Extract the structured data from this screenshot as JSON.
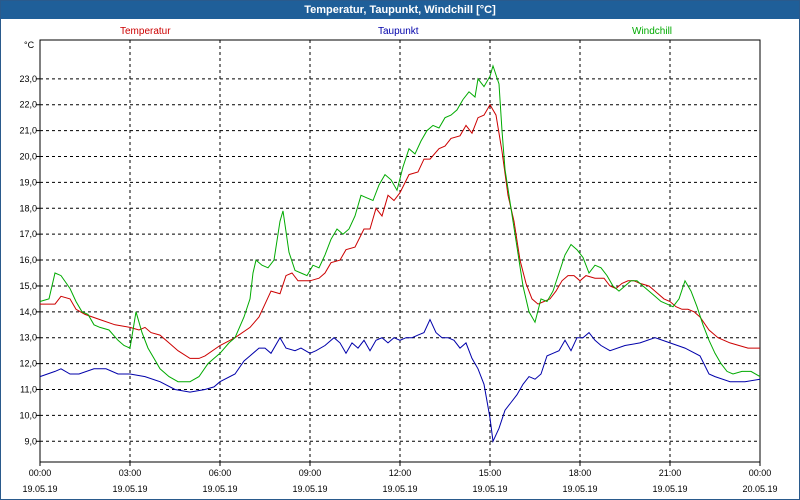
{
  "window": {
    "title": "Temperatur, Taupunkt, Windchill [°C]"
  },
  "chart_data": {
    "type": "line",
    "title": "Temperatur, Taupunkt, Windchill [°C]",
    "ylabel": "°C",
    "xlabel": "",
    "ylim": [
      8.2,
      24.5
    ],
    "xlim": [
      0,
      24
    ],
    "grid": true,
    "yticks": [
      9,
      10,
      11,
      12,
      13,
      14,
      15,
      16,
      17,
      18,
      19,
      20,
      21,
      22,
      23
    ],
    "ytick_labels": [
      "9,0",
      "10,0",
      "11,0",
      "12,0",
      "13,0",
      "14,0",
      "15,0",
      "16,0",
      "17,0",
      "18,0",
      "19,0",
      "20,0",
      "21,0",
      "22,0",
      "23,0"
    ],
    "xticks": [
      0,
      3,
      6,
      9,
      12,
      15,
      18,
      21,
      24
    ],
    "xtick_time_labels": [
      "00:00",
      "03:00",
      "06:00",
      "09:00",
      "12:00",
      "15:00",
      "18:00",
      "21:00",
      "00:00"
    ],
    "xtick_date_labels": [
      "19.05.19",
      "19.05.19",
      "19.05.19",
      "19.05.19",
      "19.05.19",
      "19.05.19",
      "19.05.19",
      "19.05.19",
      "20.05.19"
    ],
    "legend_position": "top",
    "series": [
      {
        "name": "Temperatur",
        "color": "#cc0000",
        "points": [
          [
            0,
            14.3
          ],
          [
            0.3,
            14.3
          ],
          [
            0.5,
            14.3
          ],
          [
            0.7,
            14.6
          ],
          [
            1,
            14.5
          ],
          [
            1.2,
            14.1
          ],
          [
            1.5,
            13.9
          ],
          [
            2,
            13.7
          ],
          [
            2.5,
            13.5
          ],
          [
            3,
            13.4
          ],
          [
            3.3,
            13.3
          ],
          [
            3.5,
            13.4
          ],
          [
            3.7,
            13.2
          ],
          [
            4,
            13.1
          ],
          [
            4.3,
            12.8
          ],
          [
            4.6,
            12.5
          ],
          [
            5,
            12.2
          ],
          [
            5.3,
            12.2
          ],
          [
            5.5,
            12.3
          ],
          [
            6,
            12.7
          ],
          [
            6.5,
            13.0
          ],
          [
            7,
            13.4
          ],
          [
            7.3,
            13.8
          ],
          [
            7.5,
            14.3
          ],
          [
            7.7,
            14.8
          ],
          [
            8,
            14.7
          ],
          [
            8.2,
            15.4
          ],
          [
            8.4,
            15.5
          ],
          [
            8.6,
            15.2
          ],
          [
            9,
            15.2
          ],
          [
            9.3,
            15.3
          ],
          [
            9.5,
            15.5
          ],
          [
            9.7,
            15.9
          ],
          [
            10,
            16.0
          ],
          [
            10.2,
            16.4
          ],
          [
            10.5,
            16.5
          ],
          [
            10.8,
            17.2
          ],
          [
            11,
            17.2
          ],
          [
            11.2,
            18.0
          ],
          [
            11.4,
            17.7
          ],
          [
            11.6,
            18.5
          ],
          [
            11.8,
            18.3
          ],
          [
            12,
            18.6
          ],
          [
            12.3,
            19.3
          ],
          [
            12.6,
            19.4
          ],
          [
            12.8,
            19.9
          ],
          [
            13,
            19.9
          ],
          [
            13.3,
            20.3
          ],
          [
            13.5,
            20.4
          ],
          [
            13.7,
            20.7
          ],
          [
            14,
            20.8
          ],
          [
            14.2,
            21.2
          ],
          [
            14.4,
            20.9
          ],
          [
            14.6,
            21.5
          ],
          [
            14.8,
            21.6
          ],
          [
            15,
            22.0
          ],
          [
            15.2,
            21.6
          ],
          [
            15.4,
            20.2
          ],
          [
            15.6,
            18.5
          ],
          [
            15.8,
            17.5
          ],
          [
            16,
            16.0
          ],
          [
            16.2,
            15.1
          ],
          [
            16.4,
            14.5
          ],
          [
            16.6,
            14.3
          ],
          [
            16.8,
            14.4
          ],
          [
            17,
            14.5
          ],
          [
            17.2,
            14.8
          ],
          [
            17.4,
            15.2
          ],
          [
            17.6,
            15.4
          ],
          [
            17.8,
            15.4
          ],
          [
            18,
            15.2
          ],
          [
            18.2,
            15.4
          ],
          [
            18.5,
            15.3
          ],
          [
            18.8,
            15.3
          ],
          [
            19,
            15.0
          ],
          [
            19.2,
            14.9
          ],
          [
            19.4,
            15.1
          ],
          [
            19.6,
            15.2
          ],
          [
            19.8,
            15.2
          ],
          [
            20,
            15.1
          ],
          [
            20.3,
            15.0
          ],
          [
            20.5,
            14.8
          ],
          [
            20.8,
            14.5
          ],
          [
            21,
            14.4
          ],
          [
            21.2,
            14.2
          ],
          [
            21.4,
            14.1
          ],
          [
            21.6,
            14.1
          ],
          [
            21.8,
            14.0
          ],
          [
            22,
            13.8
          ],
          [
            22.3,
            13.3
          ],
          [
            22.6,
            13.0
          ],
          [
            23,
            12.8
          ],
          [
            23.3,
            12.7
          ],
          [
            23.6,
            12.6
          ],
          [
            24,
            12.6
          ]
        ]
      },
      {
        "name": "Taupunkt",
        "color": "#0000aa",
        "points": [
          [
            0,
            11.5
          ],
          [
            0.5,
            11.7
          ],
          [
            0.7,
            11.8
          ],
          [
            1,
            11.6
          ],
          [
            1.3,
            11.6
          ],
          [
            1.8,
            11.8
          ],
          [
            2.2,
            11.8
          ],
          [
            2.6,
            11.6
          ],
          [
            3,
            11.6
          ],
          [
            3.5,
            11.5
          ],
          [
            4,
            11.3
          ],
          [
            4.5,
            11.0
          ],
          [
            5,
            10.9
          ],
          [
            5.5,
            11.0
          ],
          [
            5.8,
            11.1
          ],
          [
            6,
            11.3
          ],
          [
            6.5,
            11.6
          ],
          [
            6.8,
            12.1
          ],
          [
            7,
            12.3
          ],
          [
            7.3,
            12.6
          ],
          [
            7.5,
            12.6
          ],
          [
            7.7,
            12.4
          ],
          [
            8,
            13.0
          ],
          [
            8.2,
            12.6
          ],
          [
            8.5,
            12.5
          ],
          [
            8.7,
            12.6
          ],
          [
            9,
            12.4
          ],
          [
            9.2,
            12.5
          ],
          [
            9.5,
            12.7
          ],
          [
            9.8,
            13.0
          ],
          [
            10,
            12.8
          ],
          [
            10.2,
            12.4
          ],
          [
            10.4,
            12.8
          ],
          [
            10.6,
            12.6
          ],
          [
            10.8,
            12.9
          ],
          [
            11,
            12.5
          ],
          [
            11.2,
            12.9
          ],
          [
            11.4,
            13.0
          ],
          [
            11.6,
            12.8
          ],
          [
            11.8,
            13.0
          ],
          [
            12,
            12.9
          ],
          [
            12.2,
            13.0
          ],
          [
            12.4,
            13.0
          ],
          [
            12.6,
            13.1
          ],
          [
            12.8,
            13.2
          ],
          [
            13,
            13.7
          ],
          [
            13.2,
            13.2
          ],
          [
            13.4,
            13.0
          ],
          [
            13.6,
            13.0
          ],
          [
            13.8,
            12.9
          ],
          [
            14,
            12.6
          ],
          [
            14.2,
            12.8
          ],
          [
            14.4,
            12.2
          ],
          [
            14.6,
            11.8
          ],
          [
            14.8,
            11.2
          ],
          [
            15,
            9.9
          ],
          [
            15.1,
            9.0
          ],
          [
            15.3,
            9.5
          ],
          [
            15.5,
            10.2
          ],
          [
            15.7,
            10.5
          ],
          [
            15.9,
            10.8
          ],
          [
            16.1,
            11.2
          ],
          [
            16.3,
            11.5
          ],
          [
            16.5,
            11.4
          ],
          [
            16.7,
            11.6
          ],
          [
            16.9,
            12.3
          ],
          [
            17.1,
            12.4
          ],
          [
            17.3,
            12.5
          ],
          [
            17.5,
            12.9
          ],
          [
            17.7,
            12.5
          ],
          [
            17.9,
            13.0
          ],
          [
            18.1,
            13.0
          ],
          [
            18.3,
            13.2
          ],
          [
            18.5,
            12.9
          ],
          [
            18.7,
            12.7
          ],
          [
            19,
            12.5
          ],
          [
            19.5,
            12.7
          ],
          [
            20,
            12.8
          ],
          [
            20.5,
            13.0
          ],
          [
            21,
            12.8
          ],
          [
            21.5,
            12.6
          ],
          [
            22,
            12.3
          ],
          [
            22.3,
            11.6
          ],
          [
            22.5,
            11.5
          ],
          [
            23,
            11.3
          ],
          [
            23.5,
            11.3
          ],
          [
            24,
            11.4
          ]
        ]
      },
      {
        "name": "Windchill",
        "color": "#00aa00",
        "points": [
          [
            0,
            14.4
          ],
          [
            0.3,
            14.5
          ],
          [
            0.5,
            15.5
          ],
          [
            0.7,
            15.4
          ],
          [
            1,
            14.9
          ],
          [
            1.2,
            14.4
          ],
          [
            1.4,
            14.0
          ],
          [
            1.6,
            13.9
          ],
          [
            1.8,
            13.5
          ],
          [
            2,
            13.4
          ],
          [
            2.3,
            13.3
          ],
          [
            2.6,
            12.9
          ],
          [
            2.8,
            12.7
          ],
          [
            3,
            12.6
          ],
          [
            3.1,
            13.3
          ],
          [
            3.2,
            14.0
          ],
          [
            3.4,
            13.2
          ],
          [
            3.6,
            12.6
          ],
          [
            3.8,
            12.2
          ],
          [
            4,
            11.8
          ],
          [
            4.3,
            11.5
          ],
          [
            4.6,
            11.3
          ],
          [
            5,
            11.3
          ],
          [
            5.3,
            11.5
          ],
          [
            5.6,
            12.0
          ],
          [
            5.8,
            12.2
          ],
          [
            6,
            12.4
          ],
          [
            6.3,
            12.8
          ],
          [
            6.5,
            13.0
          ],
          [
            6.8,
            13.8
          ],
          [
            7,
            14.5
          ],
          [
            7.1,
            15.5
          ],
          [
            7.2,
            16.0
          ],
          [
            7.4,
            15.8
          ],
          [
            7.6,
            15.7
          ],
          [
            7.8,
            16.0
          ],
          [
            8,
            17.5
          ],
          [
            8.1,
            17.9
          ],
          [
            8.3,
            16.3
          ],
          [
            8.5,
            15.6
          ],
          [
            8.7,
            15.5
          ],
          [
            8.9,
            15.4
          ],
          [
            9.1,
            15.8
          ],
          [
            9.3,
            15.7
          ],
          [
            9.5,
            16.2
          ],
          [
            9.7,
            16.8
          ],
          [
            9.9,
            17.2
          ],
          [
            10.1,
            17.0
          ],
          [
            10.3,
            17.2
          ],
          [
            10.5,
            17.7
          ],
          [
            10.7,
            18.5
          ],
          [
            10.9,
            18.4
          ],
          [
            11.1,
            18.3
          ],
          [
            11.3,
            18.9
          ],
          [
            11.5,
            19.3
          ],
          [
            11.7,
            19.1
          ],
          [
            11.9,
            18.7
          ],
          [
            12.1,
            19.6
          ],
          [
            12.3,
            20.3
          ],
          [
            12.5,
            20.1
          ],
          [
            12.7,
            20.6
          ],
          [
            12.9,
            21.0
          ],
          [
            13.1,
            21.2
          ],
          [
            13.3,
            21.1
          ],
          [
            13.5,
            21.5
          ],
          [
            13.7,
            21.6
          ],
          [
            13.9,
            21.8
          ],
          [
            14.1,
            22.2
          ],
          [
            14.3,
            22.5
          ],
          [
            14.5,
            22.3
          ],
          [
            14.6,
            23.0
          ],
          [
            14.8,
            22.7
          ],
          [
            15,
            23.1
          ],
          [
            15.1,
            23.5
          ],
          [
            15.3,
            22.8
          ],
          [
            15.4,
            21.0
          ],
          [
            15.5,
            19.5
          ],
          [
            15.7,
            18.0
          ],
          [
            15.9,
            16.5
          ],
          [
            16.1,
            15.0
          ],
          [
            16.3,
            14.0
          ],
          [
            16.5,
            13.6
          ],
          [
            16.7,
            14.5
          ],
          [
            16.9,
            14.4
          ],
          [
            17.1,
            14.8
          ],
          [
            17.3,
            15.5
          ],
          [
            17.5,
            16.2
          ],
          [
            17.7,
            16.6
          ],
          [
            17.9,
            16.4
          ],
          [
            18.1,
            16.1
          ],
          [
            18.3,
            15.5
          ],
          [
            18.5,
            15.8
          ],
          [
            18.7,
            15.7
          ],
          [
            18.9,
            15.4
          ],
          [
            19.1,
            15.0
          ],
          [
            19.3,
            14.8
          ],
          [
            19.5,
            15.0
          ],
          [
            19.7,
            15.2
          ],
          [
            19.9,
            15.2
          ],
          [
            20.1,
            15.0
          ],
          [
            20.3,
            14.8
          ],
          [
            20.5,
            14.6
          ],
          [
            20.7,
            14.4
          ],
          [
            20.9,
            14.3
          ],
          [
            21.1,
            14.2
          ],
          [
            21.3,
            14.5
          ],
          [
            21.5,
            15.2
          ],
          [
            21.7,
            14.8
          ],
          [
            21.9,
            14.2
          ],
          [
            22.1,
            13.5
          ],
          [
            22.3,
            12.9
          ],
          [
            22.5,
            12.4
          ],
          [
            22.7,
            12.0
          ],
          [
            22.9,
            11.7
          ],
          [
            23.1,
            11.6
          ],
          [
            23.4,
            11.7
          ],
          [
            23.7,
            11.7
          ],
          [
            24,
            11.5
          ]
        ]
      }
    ]
  }
}
